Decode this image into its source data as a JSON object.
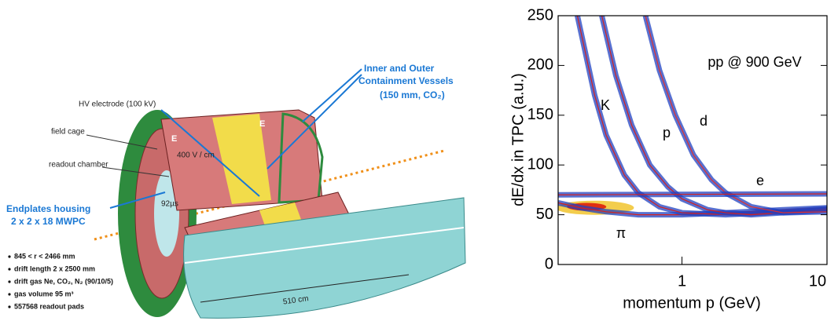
{
  "diagram": {
    "labels": {
      "hv_electrode": "HV electrode (100 kV)",
      "field_cage": "field cage",
      "readout_chamber": "readout chamber",
      "endplates_1": "Endplates housing",
      "endplates_2": "2 x 2 x 18 MWPC",
      "vessels_1": "Inner and Outer",
      "vessels_2": "Containment Vessels",
      "vessels_3": "(150 mm, CO₂)",
      "e_field_1": "E",
      "e_field_2": "E",
      "field_strength": "400 V / cm",
      "drift_time": "92µs",
      "length": "510 cm"
    },
    "bullets": [
      "845 < r < 2466 mm",
      "drift length 2 x 2500 mm",
      "drift gas Ne, CO₂, N₂ (90/10/5)",
      "gas volume 95 m³",
      "557568 readout pads"
    ]
  },
  "chart_data": {
    "type": "line",
    "ylabel": "dE/dx in TPC (a.u.)",
    "xlabel": "momentum p (GeV)",
    "annotation": "pp @ 900 GeV",
    "xlog": true,
    "xlim": [
      0.14,
      10
    ],
    "ylim": [
      0,
      250
    ],
    "xticks": [
      1,
      10
    ],
    "yticks": [
      0,
      50,
      100,
      150,
      200,
      250
    ],
    "series": [
      {
        "name": "π",
        "color": "#d42020",
        "x": [
          0.14,
          0.2,
          0.3,
          0.5,
          1,
          2,
          5,
          10
        ],
        "values": [
          62,
          57,
          53,
          50,
          50,
          52,
          55,
          57
        ]
      },
      {
        "name": "K",
        "color": "#d42020",
        "x": [
          0.19,
          0.25,
          0.3,
          0.4,
          0.5,
          0.7,
          1,
          2,
          5,
          10
        ],
        "values": [
          250,
          170,
          130,
          90,
          72,
          58,
          52,
          50,
          53,
          56
        ]
      },
      {
        "name": "p",
        "color": "#d42020",
        "x": [
          0.28,
          0.35,
          0.45,
          0.6,
          0.8,
          1,
          1.5,
          2,
          3,
          5,
          10
        ],
        "values": [
          250,
          190,
          140,
          100,
          78,
          66,
          55,
          52,
          50,
          52,
          55
        ]
      },
      {
        "name": "d",
        "color": "#e03030",
        "x": [
          0.56,
          0.7,
          0.9,
          1.2,
          1.6,
          2,
          3,
          5,
          10
        ],
        "values": [
          250,
          195,
          150,
          110,
          85,
          72,
          58,
          52,
          53
        ]
      },
      {
        "name": "e",
        "color": "#d42020",
        "x": [
          0.14,
          10
        ],
        "values": [
          70,
          71
        ]
      }
    ]
  }
}
